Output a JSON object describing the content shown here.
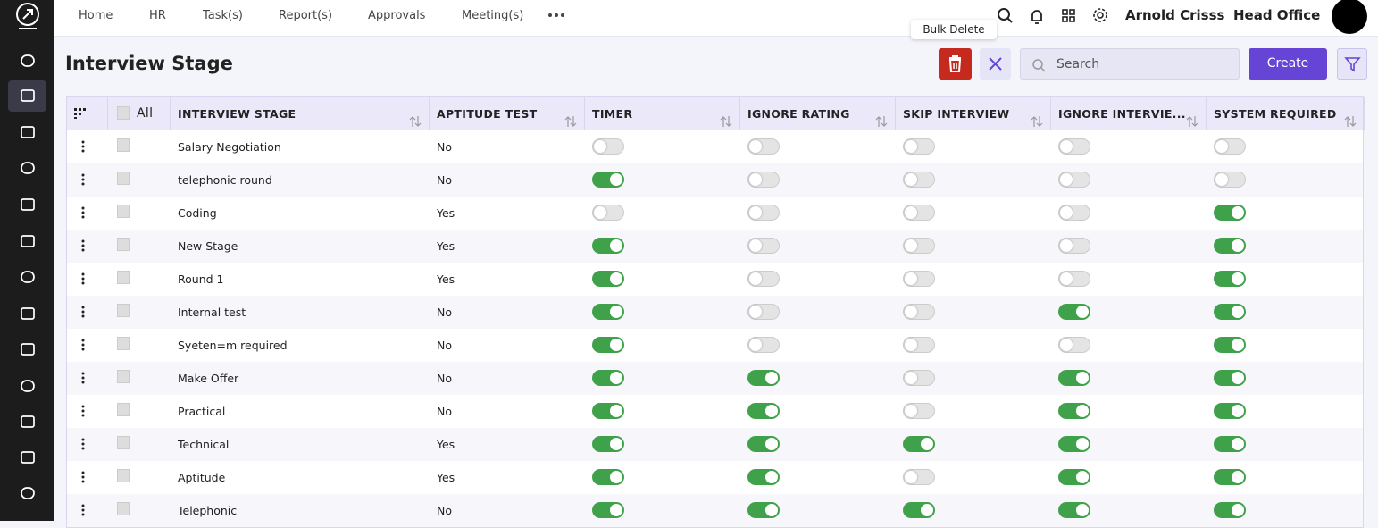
{
  "nav": {
    "items": [
      "Home",
      "HR",
      "Task(s)",
      "Report(s)",
      "Approvals",
      "Meeting(s)"
    ],
    "user": "Arnold Crisss",
    "company": "Head Office"
  },
  "toolbar": {
    "title": "Interview Stage",
    "tooltip": "Bulk Delete",
    "search_placeholder": "Search",
    "create": "Create"
  },
  "table": {
    "select_all": "All",
    "columns": [
      "INTERVIEW STAGE",
      "APTITUDE TEST",
      "TIMER",
      "IGNORE RATING",
      "SKIP INTERVIEW",
      "IGNORE INTERVIE...",
      "SYSTEM REQUIRED"
    ],
    "rows": [
      {
        "stage": "Salary Negotiation",
        "aptitude": "No",
        "toggles": [
          false,
          false,
          false,
          false,
          false
        ]
      },
      {
        "stage": "telephonic round",
        "aptitude": "No",
        "toggles": [
          true,
          false,
          false,
          false,
          false
        ]
      },
      {
        "stage": "Coding",
        "aptitude": "Yes",
        "toggles": [
          false,
          false,
          false,
          false,
          true
        ]
      },
      {
        "stage": "New Stage",
        "aptitude": "Yes",
        "toggles": [
          true,
          false,
          false,
          false,
          true
        ]
      },
      {
        "stage": "Round 1",
        "aptitude": "Yes",
        "toggles": [
          true,
          false,
          false,
          false,
          true
        ]
      },
      {
        "stage": "Internal test",
        "aptitude": "No",
        "toggles": [
          true,
          false,
          false,
          true,
          true
        ]
      },
      {
        "stage": "Syeten=m required",
        "aptitude": "No",
        "toggles": [
          true,
          false,
          false,
          false,
          true
        ]
      },
      {
        "stage": "Make Offer",
        "aptitude": "No",
        "toggles": [
          true,
          true,
          false,
          true,
          true
        ]
      },
      {
        "stage": "Practical",
        "aptitude": "No",
        "toggles": [
          true,
          true,
          false,
          true,
          true
        ]
      },
      {
        "stage": "Technical",
        "aptitude": "Yes",
        "toggles": [
          true,
          true,
          true,
          true,
          true
        ]
      },
      {
        "stage": "Aptitude",
        "aptitude": "Yes",
        "toggles": [
          true,
          true,
          false,
          true,
          true
        ]
      },
      {
        "stage": "Telephonic",
        "aptitude": "No",
        "toggles": [
          true,
          true,
          true,
          true,
          true
        ]
      }
    ]
  }
}
